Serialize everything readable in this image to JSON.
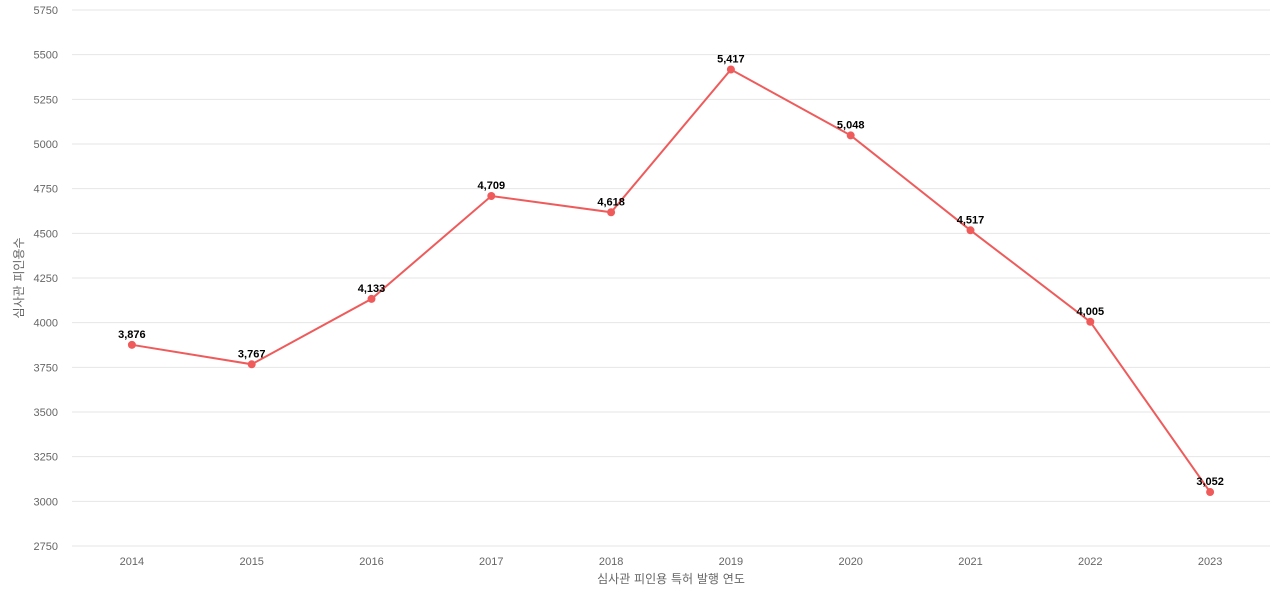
{
  "chart_data": {
    "type": "line",
    "x": [
      "2014",
      "2015",
      "2016",
      "2017",
      "2018",
      "2019",
      "2020",
      "2021",
      "2022",
      "2023"
    ],
    "series": [
      {
        "values": [
          3876,
          3767,
          4133,
          4709,
          4618,
          5417,
          5048,
          4517,
          4005,
          3052
        ],
        "data_labels": [
          "3,876",
          "3,767",
          "4,133",
          "4,709",
          "4,618",
          "5,417",
          "5,048",
          "4,517",
          "4,005",
          "3,052"
        ],
        "color": "#ef5b5b"
      }
    ],
    "xlabel": "심사관 피인용 특허 발행 연도",
    "ylabel": "심사관 피인용수",
    "ylim": [
      2750,
      5750
    ],
    "yticks": [
      "2750",
      "3000",
      "3250",
      "3500",
      "3750",
      "4000",
      "4250",
      "4500",
      "4750",
      "5000",
      "5250",
      "5500",
      "5750"
    ],
    "grid": true,
    "legend": "none"
  }
}
